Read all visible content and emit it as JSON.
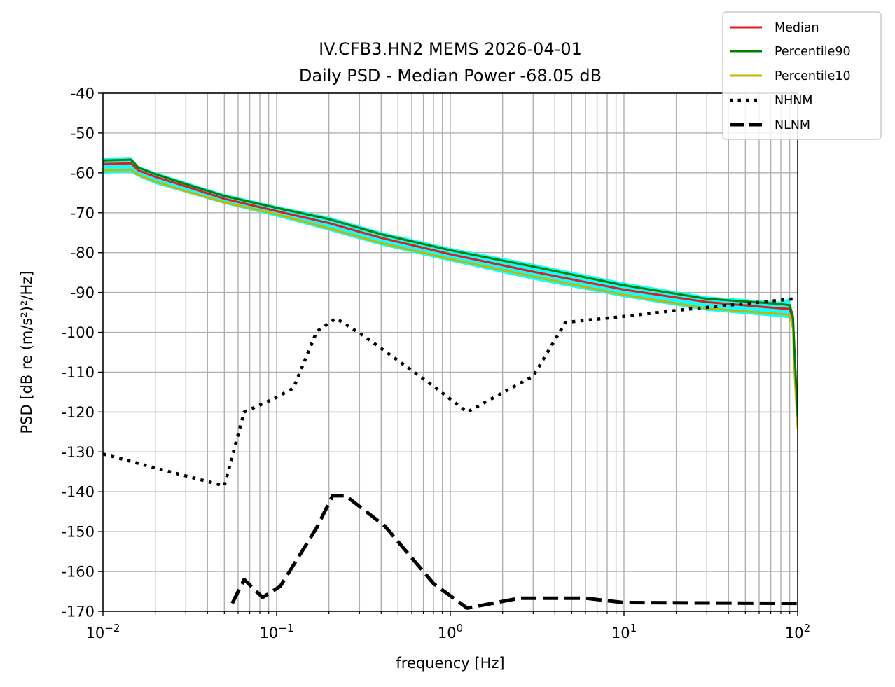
{
  "chart_data": {
    "type": "line",
    "title": "IV.CFB3.HN2 MEMS 2026-04-01",
    "subtitle": "Daily PSD - Median Power -68.05 dB",
    "xlabel": "frequency [Hz]",
    "ylabel": "PSD [dB re (m/s²)²/Hz]",
    "x_scale": "log",
    "xlim": [
      0.01,
      100
    ],
    "ylim": [
      -170,
      -40
    ],
    "grid": true,
    "legend_position": "top-right",
    "x_ticks": [
      {
        "value": 0.01,
        "base": "10",
        "exp": "−2"
      },
      {
        "value": 0.1,
        "base": "10",
        "exp": "−1"
      },
      {
        "value": 1,
        "base": "10",
        "exp": "0"
      },
      {
        "value": 10,
        "base": "10",
        "exp": "1"
      },
      {
        "value": 100,
        "base": "10",
        "exp": "2"
      }
    ],
    "y_ticks": [
      {
        "value": -40,
        "label": "-40"
      },
      {
        "value": -50,
        "label": "-50"
      },
      {
        "value": -60,
        "label": "-60"
      },
      {
        "value": -70,
        "label": "-70"
      },
      {
        "value": -80,
        "label": "-80"
      },
      {
        "value": -90,
        "label": "-90"
      },
      {
        "value": -100,
        "label": "-100"
      },
      {
        "value": -110,
        "label": "-110"
      },
      {
        "value": -120,
        "label": "-120"
      },
      {
        "value": -130,
        "label": "-130"
      },
      {
        "value": -140,
        "label": "-140"
      },
      {
        "value": -150,
        "label": "-150"
      },
      {
        "value": -160,
        "label": "-160"
      },
      {
        "value": -170,
        "label": "-170"
      }
    ],
    "spread_band": {
      "color": "#00ffff",
      "upper": [
        [
          0.01,
          -56.2
        ],
        [
          0.0145,
          -56.0
        ],
        [
          0.016,
          -58.3
        ],
        [
          0.02,
          -59.8
        ],
        [
          0.03,
          -62.3
        ],
        [
          0.05,
          -65.3
        ],
        [
          0.1,
          -68.3
        ],
        [
          0.2,
          -71.0
        ],
        [
          0.4,
          -74.8
        ],
        [
          1,
          -78.8
        ],
        [
          3,
          -82.8
        ],
        [
          10,
          -87.5
        ],
        [
          30,
          -91.0
        ],
        [
          80,
          -92.3
        ],
        [
          88,
          -91.5
        ],
        [
          92,
          -93.0
        ],
        [
          96,
          -105
        ],
        [
          100,
          -121
        ]
      ],
      "lower": [
        [
          0.01,
          -60.2
        ],
        [
          0.0145,
          -60.0
        ],
        [
          0.016,
          -61.0
        ],
        [
          0.02,
          -62.8
        ],
        [
          0.03,
          -65.0
        ],
        [
          0.05,
          -67.8
        ],
        [
          0.1,
          -71.0
        ],
        [
          0.2,
          -74.5
        ],
        [
          0.4,
          -78.2
        ],
        [
          1,
          -82.2
        ],
        [
          3,
          -86.8
        ],
        [
          10,
          -91.2
        ],
        [
          30,
          -94.6
        ],
        [
          80,
          -96.2
        ],
        [
          90,
          -96.5
        ],
        [
          93,
          -99
        ],
        [
          96,
          -112
        ],
        [
          100,
          -126
        ]
      ]
    },
    "series": [
      {
        "name": "Median",
        "color": "#e41a1c",
        "style": "solid",
        "points": [
          [
            0.01,
            -57.8
          ],
          [
            0.0145,
            -57.6
          ],
          [
            0.016,
            -59.4
          ],
          [
            0.02,
            -61.0
          ],
          [
            0.03,
            -63.4
          ],
          [
            0.05,
            -66.5
          ],
          [
            0.1,
            -69.6
          ],
          [
            0.2,
            -72.6
          ],
          [
            0.4,
            -76.3
          ],
          [
            1,
            -80.4
          ],
          [
            3,
            -84.8
          ],
          [
            10,
            -89.3
          ],
          [
            30,
            -92.4
          ],
          [
            80,
            -94.0
          ],
          [
            90,
            -94.1
          ],
          [
            94,
            -97
          ],
          [
            96,
            -106
          ],
          [
            100,
            -122
          ]
        ]
      },
      {
        "name": "Percentile90",
        "color": "#008000",
        "style": "solid",
        "points": [
          [
            0.01,
            -56.9
          ],
          [
            0.0145,
            -56.7
          ],
          [
            0.016,
            -58.7
          ],
          [
            0.02,
            -60.3
          ],
          [
            0.03,
            -62.8
          ],
          [
            0.05,
            -65.8
          ],
          [
            0.1,
            -68.8
          ],
          [
            0.2,
            -71.6
          ],
          [
            0.4,
            -75.4
          ],
          [
            1,
            -79.4
          ],
          [
            3,
            -83.5
          ],
          [
            10,
            -88.2
          ],
          [
            30,
            -91.6
          ],
          [
            80,
            -92.9
          ],
          [
            90,
            -93.2
          ],
          [
            94,
            -96
          ],
          [
            96,
            -105
          ],
          [
            100,
            -121
          ]
        ]
      },
      {
        "name": "Percentile10",
        "color": "#c8b400",
        "style": "solid",
        "points": [
          [
            0.01,
            -59.4
          ],
          [
            0.0145,
            -59.2
          ],
          [
            0.016,
            -60.5
          ],
          [
            0.02,
            -62.2
          ],
          [
            0.03,
            -64.6
          ],
          [
            0.05,
            -67.4
          ],
          [
            0.1,
            -70.4
          ],
          [
            0.2,
            -73.9
          ],
          [
            0.4,
            -77.6
          ],
          [
            1,
            -81.6
          ],
          [
            3,
            -86.0
          ],
          [
            10,
            -90.6
          ],
          [
            30,
            -94.0
          ],
          [
            80,
            -95.4
          ],
          [
            90,
            -95.6
          ],
          [
            94,
            -99
          ],
          [
            96,
            -110
          ],
          [
            100,
            -124
          ]
        ]
      },
      {
        "name": "NHNM",
        "color": "#000000",
        "style": "dotted",
        "points": [
          [
            0.01,
            -130.5
          ],
          [
            0.022,
            -134.5
          ],
          [
            0.05,
            -138.5
          ],
          [
            0.065,
            -120.0
          ],
          [
            0.095,
            -116.8
          ],
          [
            0.125,
            -114.0
          ],
          [
            0.17,
            -99.8
          ],
          [
            0.22,
            -96.5
          ],
          [
            0.32,
            -101.0
          ],
          [
            0.8,
            -113.5
          ],
          [
            1.25,
            -120.0
          ],
          [
            3.0,
            -111.0
          ],
          [
            4.6,
            -97.5
          ],
          [
            10,
            -96.0
          ],
          [
            20,
            -94.5
          ],
          [
            100,
            -91.5
          ]
        ]
      },
      {
        "name": "NLNM",
        "color": "#000000",
        "style": "dashed",
        "points": [
          [
            0.0555,
            -168.0
          ],
          [
            0.065,
            -162.0
          ],
          [
            0.083,
            -166.5
          ],
          [
            0.105,
            -163.7
          ],
          [
            0.17,
            -149.0
          ],
          [
            0.21,
            -141.0
          ],
          [
            0.25,
            -141.0
          ],
          [
            0.42,
            -148.6
          ],
          [
            0.8,
            -163.0
          ],
          [
            1.25,
            -169.2
          ],
          [
            2.5,
            -166.7
          ],
          [
            6.0,
            -166.7
          ],
          [
            10,
            -167.8
          ],
          [
            100,
            -168.0
          ]
        ]
      }
    ]
  }
}
